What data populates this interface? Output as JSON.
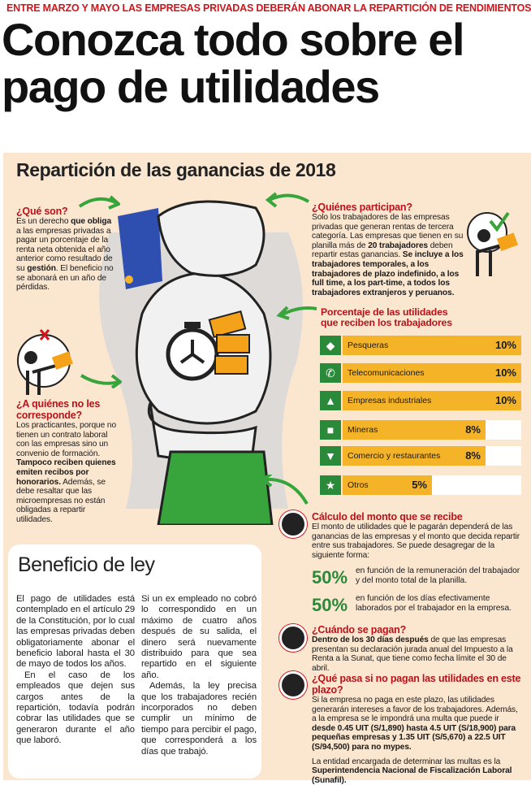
{
  "kicker": "ENTRE MARZO Y MAYO LAS EMPRESAS PRIVADAS DEBERÁN ABONAR LA REPARTICIÓN DE RENDIMIENTOS",
  "headline": {
    "line1": "Conozca todo sobre el",
    "line2": "pago de utilidades"
  },
  "subtitle": "Repartición de las ganancias de 2018",
  "que_son": {
    "title": "¿Qué son?",
    "t1": "Es un derecho ",
    "b1": "que obliga",
    "t2": " a las empresas privadas a pagar un porcentaje de la renta neta obtenida el año anterior como resultado de su ",
    "b2": "gestión",
    "t3": ". El beneficio no se abonará en un año de pérdidas."
  },
  "quienes": {
    "title": "¿Quiénes participan?",
    "t1": "Solo los trabajadores de las empresas privadas que generan rentas de tercera categoría. Las empresas que tienen en su planilla más de ",
    "b1": "20 trabajadores",
    "t2": " deben repartir estas ganancias. ",
    "b2": "Se incluye a los trabajadores temporales, a los trabajadores de plazo indefinido, a los full time, a los part-time, a todos los trabajadores extranjeros y peruanos."
  },
  "no_corresponde": {
    "title1": "¿A quiénes no les",
    "title2": "corresponde?",
    "t1": "Los practicantes, porque no tienen un contrato laboral con las empresas sino un convenio de formación. ",
    "b1": "Tampoco reciben quienes emiten recibos por honorarios.",
    "t2": " Además, se debe resaltar que las microempresas no están obligadas a repartir utilidades."
  },
  "porcentaje_title": {
    "l1": "Porcentaje de las utilidades",
    "l2": "que reciben los trabajadores"
  },
  "sectors": [
    {
      "icon": "fish-icon",
      "glyph": "◆",
      "label": "Pesqueras",
      "value": "10%",
      "pct": 10
    },
    {
      "icon": "phone-icon",
      "glyph": "✆",
      "label": "Telecomunicaciones",
      "value": "10%",
      "pct": 10
    },
    {
      "icon": "factory-icon",
      "glyph": "▲",
      "label": "Empresas industriales",
      "value": "10%",
      "pct": 10
    },
    {
      "icon": "mining-cart-icon",
      "glyph": "■",
      "label": "Mineras",
      "value": "8%",
      "pct": 8
    },
    {
      "icon": "shopping-cart-icon",
      "glyph": "▼",
      "label": "Comercio y restaurantes",
      "value": "8%",
      "pct": 8
    },
    {
      "icon": "star-icon",
      "glyph": "★",
      "label": "Otros",
      "value": "5%",
      "pct": 5
    }
  ],
  "calculo": {
    "title": "Cálculo del monto que se recibe",
    "text": "El monto de utilidades que le pagarán dependerá de las ganancias de las empresas y el monto que decida repartir entre sus trabajadores. Se puede desagregar de la siguiente forma:",
    "p1": "50%",
    "p1_text": "en función de la remuneración del trabajador y del monto total de la planilla.",
    "p2": "50%",
    "p2_text": "en función de los días efectivamente laborados por el trabajador en la empresa."
  },
  "cuando": {
    "title": "¿Cuándo se pagan?",
    "b1": "Dentro de los 30 días después",
    "t1": " de que las empresas presentan su declaración jurada anual del Impuesto a la Renta a la Sunat, que tiene como fecha límite el 30 de abril."
  },
  "que_pasa": {
    "title": "¿Qué pasa si no pagan las utilidades en este plazo?",
    "t1": "Si la empresa no paga en este plazo, las utilidades generarán intereses a favor de los trabajadores. Además, a la empresa se le impondrá una multa que puede ir ",
    "b1": "desde 0.45 UIT (S/1,890) hasta 4.5 UIT (S/18,900) para pequeñas empresas y 1.35 UIT (S/5,670) a 22.5 UIT (S/94,500) para no mypes.",
    "t2": "La entidad encargada de determinar las multas es la ",
    "b2": "Superintendencia Nacional de Fiscalización Laboral (Sunafil)."
  },
  "beneficio": {
    "title": "Beneficio de ley",
    "c1p1": "El pago de utilidades está contemplado en el artículo 29 de la Constitución, por lo cual las empresas privadas deben obligatoriamente abonar el beneficio laboral hasta el 30 de mayo de todos los años.",
    "c1p2": "En el caso de los empleados que dejen sus cargos antes de la repartición, todavía podrán cobrar las utilidades que se generaron durante el año que laboró.",
    "c2p1": "Si un ex empleado no cobró lo correspondido en un máximo de cuatro años después de su salida, el dinero será nuevamente distribuido para que sea repartido en el siguiente año.",
    "c2p2": "Además, la ley precisa que los trabajadores recién incorporados no deben cumplir un mínimo de tiempo para percibir el pago, que corresponderá a los días que trabajó."
  },
  "colors": {
    "red": "#d0161b",
    "green": "#2a8a3a",
    "yellow": "#f5b427",
    "panel": "#fbe6cf"
  }
}
